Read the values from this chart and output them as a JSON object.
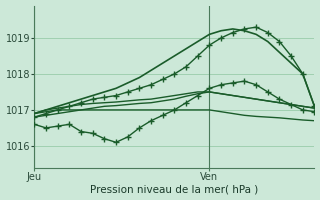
{
  "bg_color": "#cce8d8",
  "grid_color": "#99ccaa",
  "line_color": "#1a5c2a",
  "ylabel": "Pression niveau de la mer( hPa )",
  "ylim": [
    1015.4,
    1019.9
  ],
  "yticks": [
    1016,
    1017,
    1018,
    1019
  ],
  "xlim": [
    0,
    48
  ],
  "x_jeu": 0,
  "x_ven": 30,
  "series": [
    {
      "x": [
        0,
        2,
        4,
        6,
        8,
        10,
        12,
        14,
        16,
        18,
        20,
        22,
        24,
        26,
        28,
        30,
        32,
        34,
        36,
        38,
        40,
        42,
        44,
        46,
        48
      ],
      "y": [
        1016.9,
        1016.95,
        1017.0,
        1017.0,
        1017.0,
        1017.0,
        1017.0,
        1017.0,
        1017.0,
        1017.0,
        1017.0,
        1017.0,
        1017.0,
        1017.0,
        1017.0,
        1017.0,
        1016.95,
        1016.9,
        1016.85,
        1016.82,
        1016.8,
        1016.78,
        1016.75,
        1016.72,
        1016.7
      ],
      "marker": false,
      "lw": 1.0,
      "zorder": 3
    },
    {
      "x": [
        0,
        2,
        4,
        6,
        8,
        10,
        12,
        14,
        16,
        18,
        20,
        22,
        24,
        26,
        28,
        30,
        32,
        34,
        36,
        38,
        40,
        42,
        44,
        46,
        48
      ],
      "y": [
        1016.9,
        1017.0,
        1017.05,
        1017.1,
        1017.15,
        1017.18,
        1017.2,
        1017.22,
        1017.25,
        1017.28,
        1017.3,
        1017.35,
        1017.4,
        1017.45,
        1017.5,
        1017.5,
        1017.45,
        1017.4,
        1017.35,
        1017.3,
        1017.25,
        1017.2,
        1017.15,
        1017.1,
        1017.05
      ],
      "marker": false,
      "lw": 1.0,
      "zorder": 3
    },
    {
      "x": [
        0,
        2,
        4,
        6,
        8,
        10,
        12,
        14,
        16,
        18,
        20,
        22,
        24,
        26,
        28,
        30,
        32,
        34,
        36,
        38,
        40,
        42,
        44,
        46,
        48
      ],
      "y": [
        1016.8,
        1016.85,
        1016.9,
        1016.95,
        1017.0,
        1017.05,
        1017.1,
        1017.12,
        1017.15,
        1017.18,
        1017.2,
        1017.25,
        1017.3,
        1017.38,
        1017.45,
        1017.5,
        1017.45,
        1017.4,
        1017.35,
        1017.3,
        1017.25,
        1017.2,
        1017.15,
        1017.1,
        1017.05
      ],
      "marker": false,
      "lw": 1.0,
      "zorder": 3
    },
    {
      "x": [
        0,
        2,
        4,
        6,
        8,
        10,
        12,
        14,
        16,
        18,
        20,
        22,
        24,
        26,
        28,
        30,
        32,
        34,
        36,
        38,
        40,
        42,
        44,
        46,
        48
      ],
      "y": [
        1016.8,
        1016.9,
        1017.0,
        1017.1,
        1017.2,
        1017.3,
        1017.35,
        1017.4,
        1017.5,
        1017.6,
        1017.7,
        1017.85,
        1018.0,
        1018.2,
        1018.5,
        1018.8,
        1019.0,
        1019.15,
        1019.25,
        1019.3,
        1019.15,
        1018.9,
        1018.5,
        1018.0,
        1017.1
      ],
      "marker": true,
      "lw": 1.0,
      "zorder": 4
    },
    {
      "x": [
        0,
        2,
        4,
        6,
        8,
        10,
        12,
        14,
        16,
        18,
        20,
        22,
        24,
        26,
        28,
        30,
        32,
        34,
        36,
        38,
        40,
        42,
        44,
        46,
        48
      ],
      "y": [
        1016.6,
        1016.5,
        1016.55,
        1016.6,
        1016.4,
        1016.35,
        1016.2,
        1016.1,
        1016.25,
        1016.5,
        1016.7,
        1016.85,
        1017.0,
        1017.2,
        1017.4,
        1017.6,
        1017.7,
        1017.75,
        1017.8,
        1017.7,
        1017.5,
        1017.3,
        1017.15,
        1017.0,
        1016.95
      ],
      "marker": true,
      "lw": 1.0,
      "zorder": 4
    },
    {
      "x": [
        0,
        2,
        4,
        6,
        8,
        10,
        12,
        14,
        16,
        18,
        20,
        22,
        24,
        26,
        28,
        30,
        32,
        34,
        36,
        38,
        40,
        42,
        44,
        46,
        48
      ],
      "y": [
        1016.9,
        1017.0,
        1017.1,
        1017.2,
        1017.3,
        1017.4,
        1017.5,
        1017.6,
        1017.75,
        1017.9,
        1018.1,
        1018.3,
        1018.5,
        1018.7,
        1018.9,
        1019.1,
        1019.2,
        1019.25,
        1019.2,
        1019.1,
        1018.9,
        1018.6,
        1018.3,
        1018.0,
        1017.1
      ],
      "marker": false,
      "lw": 1.2,
      "zorder": 4
    }
  ]
}
